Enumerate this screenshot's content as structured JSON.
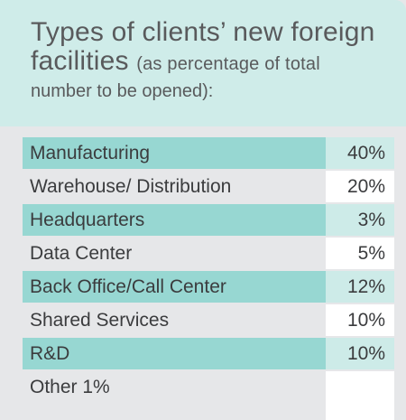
{
  "header": {
    "title_main": "Types of clients’ new foreign facilities",
    "title_sub_line1": "(as percentage of total",
    "title_sub_line2": "number to be opened):"
  },
  "chart_data": {
    "type": "table",
    "title": "Types of clients’ new foreign facilities (as percentage of total number to be opened):",
    "rows": [
      {
        "label": "Manufacturing",
        "value": "40%"
      },
      {
        "label": "Warehouse/ Distribution",
        "value": "20%"
      },
      {
        "label": "Headquarters",
        "value": "3%"
      },
      {
        "label": "Data Center",
        "value": "5%"
      },
      {
        "label": "Back Office/Call Center",
        "value": "12%"
      },
      {
        "label": "Shared Services",
        "value": "10%"
      },
      {
        "label": "R&D",
        "value": "10%"
      },
      {
        "label": "Other 1%",
        "value": ""
      }
    ]
  },
  "colors": {
    "header_bg": "#cfece9",
    "row_shaded_label": "#97d7d2",
    "row_shaded_value": "#cdebe8",
    "panel_bg": "#e6e7e9",
    "text": "#3b3c3e"
  }
}
